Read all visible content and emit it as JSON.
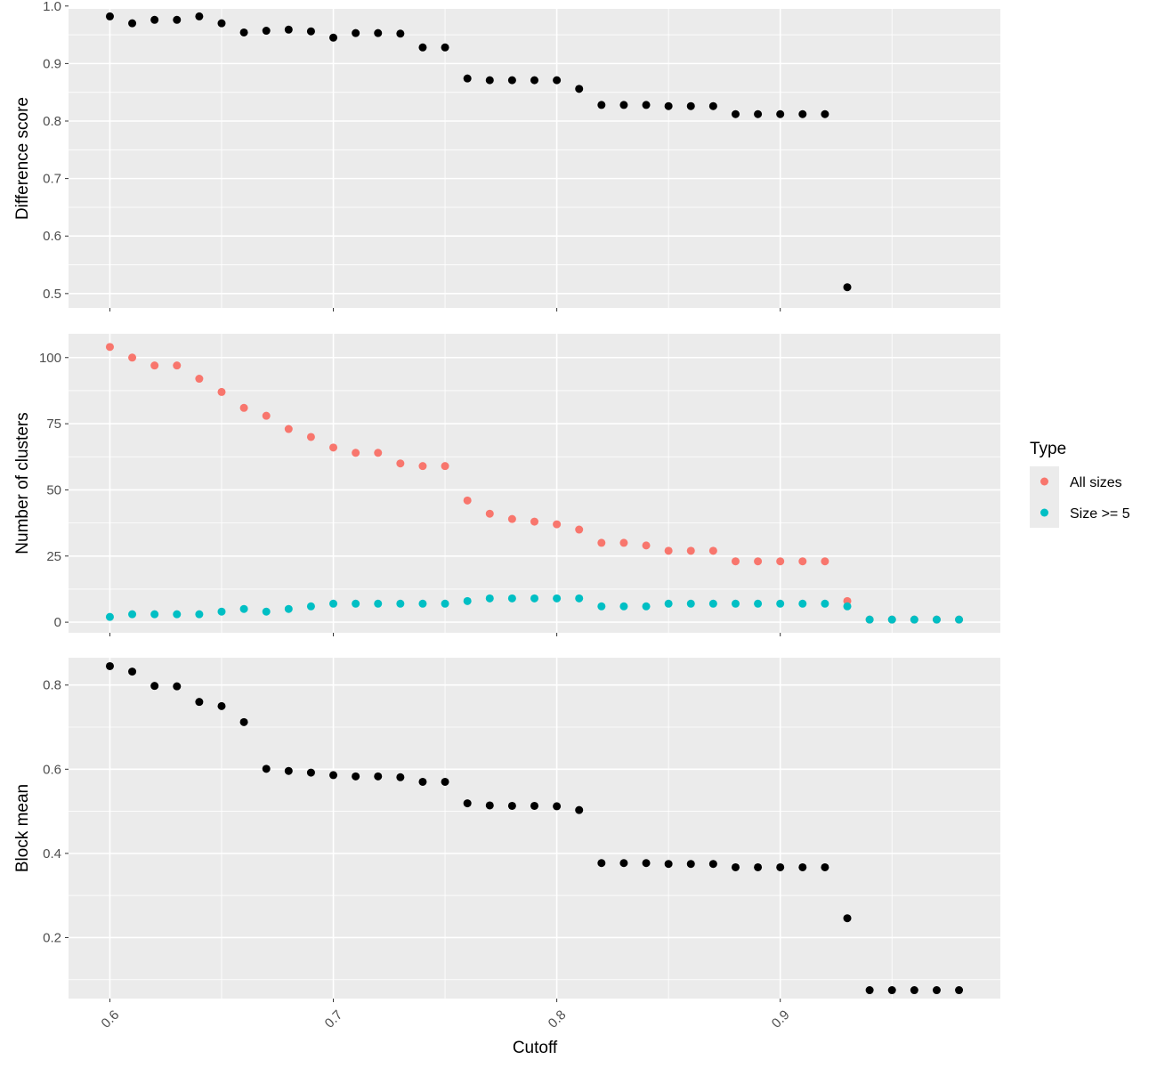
{
  "chart_data": [
    {
      "type": "scatter",
      "ylabel": "Difference score",
      "ylim": [
        0.475,
        0.995
      ],
      "yticks": [
        "0.5",
        "0.6",
        "0.7",
        "0.8",
        "0.9",
        "1.0"
      ],
      "series": [
        {
          "color": "#000000",
          "x": [
            0.6,
            0.61,
            0.62,
            0.63,
            0.64,
            0.65,
            0.66,
            0.67,
            0.68,
            0.69,
            0.7,
            0.71,
            0.72,
            0.73,
            0.74,
            0.75,
            0.76,
            0.77,
            0.78,
            0.79,
            0.8,
            0.81,
            0.82,
            0.83,
            0.84,
            0.85,
            0.86,
            0.87,
            0.88,
            0.89,
            0.9,
            0.91,
            0.92,
            0.93
          ],
          "y": [
            0.982,
            0.97,
            0.976,
            0.976,
            0.982,
            0.97,
            0.954,
            0.957,
            0.959,
            0.956,
            0.945,
            0.953,
            0.953,
            0.952,
            0.928,
            0.928,
            0.874,
            0.871,
            0.871,
            0.871,
            0.871,
            0.856,
            0.828,
            0.828,
            0.828,
            0.826,
            0.826,
            0.826,
            0.812,
            0.812,
            0.812,
            0.812,
            0.812,
            0.511
          ]
        }
      ]
    },
    {
      "type": "scatter",
      "ylabel": "Number of clusters",
      "ylim": [
        -4,
        109
      ],
      "yticks": [
        "0",
        "25",
        "50",
        "75",
        "100"
      ],
      "series": [
        {
          "name": "All sizes",
          "color": "#F8766D",
          "x": [
            0.6,
            0.61,
            0.62,
            0.63,
            0.64,
            0.65,
            0.66,
            0.67,
            0.68,
            0.69,
            0.7,
            0.71,
            0.72,
            0.73,
            0.74,
            0.75,
            0.76,
            0.77,
            0.78,
            0.79,
            0.8,
            0.81,
            0.82,
            0.83,
            0.84,
            0.85,
            0.86,
            0.87,
            0.88,
            0.89,
            0.9,
            0.91,
            0.92,
            0.93,
            0.94,
            0.95,
            0.96,
            0.97,
            0.98
          ],
          "y": [
            104,
            100,
            97,
            97,
            92,
            87,
            81,
            78,
            73,
            70,
            66,
            64,
            64,
            60,
            59,
            59,
            46,
            41,
            39,
            38,
            37,
            35,
            30,
            30,
            29,
            27,
            27,
            27,
            23,
            23,
            23,
            23,
            23,
            8,
            1,
            1,
            1,
            1,
            1
          ]
        },
        {
          "name": "Size >= 5",
          "color": "#00BFC4",
          "x": [
            0.6,
            0.61,
            0.62,
            0.63,
            0.64,
            0.65,
            0.66,
            0.67,
            0.68,
            0.69,
            0.7,
            0.71,
            0.72,
            0.73,
            0.74,
            0.75,
            0.76,
            0.77,
            0.78,
            0.79,
            0.8,
            0.81,
            0.82,
            0.83,
            0.84,
            0.85,
            0.86,
            0.87,
            0.88,
            0.89,
            0.9,
            0.91,
            0.92,
            0.93,
            0.94,
            0.95,
            0.96,
            0.97,
            0.98
          ],
          "y": [
            2,
            3,
            3,
            3,
            3,
            4,
            5,
            4,
            5,
            6,
            7,
            7,
            7,
            7,
            7,
            7,
            8,
            9,
            9,
            9,
            9,
            9,
            6,
            6,
            6,
            7,
            7,
            7,
            7,
            7,
            7,
            7,
            7,
            6,
            1,
            1,
            1,
            1,
            1
          ]
        }
      ]
    },
    {
      "type": "scatter",
      "ylabel": "Block mean",
      "ylim": [
        0.055,
        0.865
      ],
      "yticks": [
        "0.2",
        "0.4",
        "0.6",
        "0.8"
      ],
      "series": [
        {
          "color": "#000000",
          "x": [
            0.6,
            0.61,
            0.62,
            0.63,
            0.64,
            0.65,
            0.66,
            0.67,
            0.68,
            0.69,
            0.7,
            0.71,
            0.72,
            0.73,
            0.74,
            0.75,
            0.76,
            0.77,
            0.78,
            0.79,
            0.8,
            0.81,
            0.82,
            0.83,
            0.84,
            0.85,
            0.86,
            0.87,
            0.88,
            0.89,
            0.9,
            0.91,
            0.92,
            0.93,
            0.94,
            0.95,
            0.96,
            0.97,
            0.98
          ],
          "y": [
            0.845,
            0.832,
            0.798,
            0.797,
            0.76,
            0.75,
            0.712,
            0.601,
            0.596,
            0.592,
            0.586,
            0.583,
            0.583,
            0.581,
            0.57,
            0.57,
            0.519,
            0.514,
            0.513,
            0.513,
            0.512,
            0.503,
            0.377,
            0.377,
            0.377,
            0.375,
            0.375,
            0.375,
            0.367,
            0.367,
            0.367,
            0.367,
            0.367,
            0.246,
            0.075,
            0.075,
            0.075,
            0.075,
            0.075
          ]
        }
      ]
    }
  ],
  "shared_x": {
    "label": "Cutoff",
    "xlim": [
      0.5815,
      0.9985
    ],
    "ticks": [
      "0.6",
      "0.7",
      "0.8",
      "0.9"
    ]
  },
  "legend": {
    "title": "Type",
    "entries": [
      "All sizes",
      "Size >= 5"
    ],
    "colors": [
      "#F8766D",
      "#00BFC4"
    ],
    "placement": "right"
  }
}
